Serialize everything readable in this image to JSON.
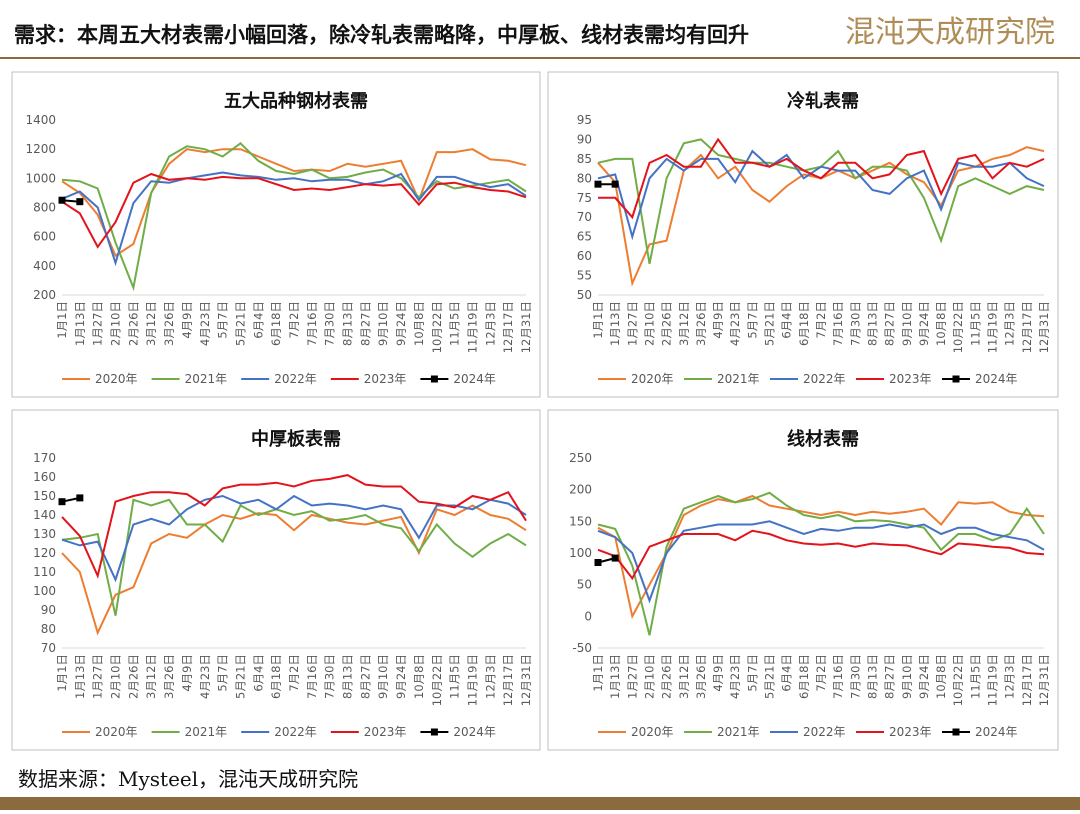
{
  "header": {
    "title": "需求：本周五大材表需小幅回落，除冷轧表需略降，中厚板、线材表需均有回升",
    "logo": "混沌天成研究院"
  },
  "footer": {
    "source": "数据来源：Mysteel，混沌天成研究院"
  },
  "chart_data": [
    {
      "type": "line",
      "title": "五大品种钢材表需",
      "categories": [
        "1月1日",
        "1月13日",
        "1月27日",
        "2月10日",
        "2月26日",
        "3月12日",
        "3月26日",
        "4月9日",
        "4月23日",
        "5月7日",
        "5月21日",
        "6月4日",
        "6月18日",
        "7月2日",
        "7月16日",
        "7月30日",
        "8月13日",
        "8月27日",
        "9月10日",
        "9月24日",
        "10月8日",
        "10月22日",
        "11月5日",
        "11月19日",
        "12月3日",
        "12月17日",
        "12月31日"
      ],
      "ylim": [
        200,
        1400
      ],
      "yticks": [
        200,
        400,
        600,
        800,
        1000,
        1200,
        1400
      ],
      "series": [
        {
          "name": "2020年",
          "color": "#ED7D31",
          "values": [
            980,
            900,
            750,
            470,
            550,
            900,
            1100,
            1200,
            1180,
            1200,
            1200,
            1150,
            1100,
            1050,
            1060,
            1050,
            1100,
            1080,
            1100,
            1120,
            850,
            1180,
            1180,
            1200,
            1130,
            1120,
            1090
          ]
        },
        {
          "name": "2021年",
          "color": "#70AD47",
          "values": [
            990,
            980,
            930,
            560,
            250,
            900,
            1150,
            1220,
            1200,
            1150,
            1240,
            1120,
            1050,
            1030,
            1060,
            1000,
            1010,
            1040,
            1060,
            1000,
            870,
            980,
            930,
            950,
            970,
            990,
            910
          ]
        },
        {
          "name": "2022年",
          "color": "#4472C4",
          "values": [
            860,
            910,
            800,
            420,
            830,
            980,
            970,
            1000,
            1020,
            1040,
            1020,
            1010,
            990,
            1000,
            980,
            990,
            990,
            960,
            980,
            1030,
            850,
            1010,
            1010,
            970,
            940,
            960,
            880
          ]
        },
        {
          "name": "2023年",
          "color": "#E3131B",
          "values": [
            840,
            760,
            530,
            700,
            970,
            1030,
            990,
            1000,
            990,
            1010,
            1000,
            1000,
            960,
            920,
            930,
            920,
            940,
            960,
            950,
            960,
            820,
            960,
            970,
            940,
            920,
            910,
            870
          ]
        },
        {
          "name": "2024年",
          "color": "#000000",
          "marker": "square",
          "values": [
            850,
            840,
            null,
            null,
            null,
            null,
            null,
            null,
            null,
            null,
            null,
            null,
            null,
            null,
            null,
            null,
            null,
            null,
            null,
            null,
            null,
            null,
            null,
            null,
            null,
            null,
            null
          ]
        }
      ]
    },
    {
      "type": "line",
      "title": "冷轧表需",
      "categories": [
        "1月1日",
        "1月13日",
        "1月27日",
        "2月10日",
        "2月26日",
        "3月12日",
        "3月26日",
        "4月9日",
        "4月23日",
        "5月7日",
        "5月21日",
        "6月4日",
        "6月18日",
        "7月2日",
        "7月16日",
        "7月30日",
        "8月13日",
        "8月27日",
        "9月10日",
        "9月24日",
        "10月8日",
        "10月22日",
        "11月5日",
        "11月19日",
        "12月3日",
        "12月17日",
        "12月31日"
      ],
      "ylim": [
        50,
        95
      ],
      "yticks": [
        50,
        55,
        60,
        65,
        70,
        75,
        80,
        85,
        90,
        95
      ],
      "series": [
        {
          "name": "2020年",
          "color": "#ED7D31",
          "values": [
            84,
            79,
            53,
            63,
            64,
            82,
            86,
            80,
            83,
            77,
            74,
            78,
            81,
            80,
            82,
            80,
            82,
            84,
            81,
            79,
            73,
            82,
            83,
            85,
            86,
            88,
            87
          ]
        },
        {
          "name": "2021年",
          "color": "#70AD47",
          "values": [
            84,
            85,
            85,
            58,
            80,
            89,
            90,
            86,
            85,
            84,
            84,
            83,
            82,
            83,
            87,
            80,
            83,
            83,
            82,
            75,
            64,
            78,
            80,
            78,
            76,
            78,
            77
          ]
        },
        {
          "name": "2022年",
          "color": "#4472C4",
          "values": [
            80,
            81,
            65,
            80,
            85,
            82,
            85,
            85,
            79,
            87,
            83,
            86,
            80,
            83,
            82,
            82,
            77,
            76,
            80,
            82,
            72,
            84,
            83,
            83,
            84,
            80,
            78
          ]
        },
        {
          "name": "2023年",
          "color": "#E3131B",
          "values": [
            75,
            75,
            70,
            84,
            86,
            83,
            83,
            90,
            84,
            84,
            83,
            85,
            82,
            80,
            84,
            84,
            80,
            81,
            86,
            87,
            76,
            85,
            86,
            80,
            84,
            83,
            85
          ]
        },
        {
          "name": "2024年",
          "color": "#000000",
          "marker": "square",
          "values": [
            78.5,
            78.5,
            null,
            null,
            null,
            null,
            null,
            null,
            null,
            null,
            null,
            null,
            null,
            null,
            null,
            null,
            null,
            null,
            null,
            null,
            null,
            null,
            null,
            null,
            null,
            null,
            null
          ]
        }
      ]
    },
    {
      "type": "line",
      "title": "中厚板表需",
      "categories": [
        "1月1日",
        "1月13日",
        "1月27日",
        "2月10日",
        "2月26日",
        "3月12日",
        "3月26日",
        "4月9日",
        "4月23日",
        "5月7日",
        "5月21日",
        "6月4日",
        "6月18日",
        "7月2日",
        "7月16日",
        "7月30日",
        "8月13日",
        "8月27日",
        "9月10日",
        "9月24日",
        "10月8日",
        "10月22日",
        "11月5日",
        "11月19日",
        "12月3日",
        "12月17日",
        "12月31日"
      ],
      "ylim": [
        70,
        170
      ],
      "yticks": [
        70,
        80,
        90,
        100,
        110,
        120,
        130,
        140,
        150,
        160,
        170
      ],
      "series": [
        {
          "name": "2020年",
          "color": "#ED7D31",
          "values": [
            120,
            110,
            78,
            98,
            102,
            125,
            130,
            128,
            135,
            140,
            138,
            141,
            140,
            132,
            140,
            138,
            136,
            135,
            137,
            139,
            120,
            143,
            140,
            145,
            140,
            138,
            132
          ]
        },
        {
          "name": "2021年",
          "color": "#70AD47",
          "values": [
            127,
            128,
            130,
            87,
            148,
            145,
            148,
            135,
            135,
            126,
            145,
            140,
            143,
            140,
            142,
            137,
            138,
            140,
            135,
            133,
            121,
            135,
            125,
            118,
            125,
            130,
            124
          ]
        },
        {
          "name": "2022年",
          "color": "#4472C4",
          "values": [
            127,
            124,
            126,
            106,
            135,
            138,
            135,
            143,
            148,
            150,
            146,
            148,
            143,
            150,
            145,
            146,
            145,
            143,
            145,
            143,
            128,
            145,
            145,
            143,
            148,
            146,
            140
          ]
        },
        {
          "name": "2023年",
          "color": "#E3131B",
          "values": [
            139,
            129,
            108,
            147,
            150,
            152,
            152,
            151,
            145,
            154,
            156,
            156,
            157,
            155,
            158,
            159,
            161,
            156,
            155,
            155,
            147,
            146,
            144,
            150,
            148,
            152,
            137
          ]
        },
        {
          "name": "2024年",
          "color": "#000000",
          "marker": "square",
          "values": [
            147,
            149,
            null,
            null,
            null,
            null,
            null,
            null,
            null,
            null,
            null,
            null,
            null,
            null,
            null,
            null,
            null,
            null,
            null,
            null,
            null,
            null,
            null,
            null,
            null,
            null,
            null
          ]
        }
      ]
    },
    {
      "type": "line",
      "title": "线材表需",
      "categories": [
        "1月1日",
        "1月13日",
        "1月27日",
        "2月10日",
        "2月26日",
        "3月12日",
        "3月26日",
        "4月9日",
        "4月23日",
        "5月7日",
        "5月21日",
        "6月4日",
        "6月18日",
        "7月2日",
        "7月16日",
        "7月30日",
        "8月13日",
        "8月27日",
        "9月10日",
        "9月24日",
        "10月8日",
        "10月22日",
        "11月5日",
        "11月19日",
        "12月3日",
        "12月17日",
        "12月31日"
      ],
      "ylim": [
        -50,
        250
      ],
      "yticks": [
        -50,
        0,
        50,
        100,
        150,
        200,
        250
      ],
      "series": [
        {
          "name": "2020年",
          "color": "#ED7D31",
          "values": [
            140,
            125,
            0,
            50,
            100,
            160,
            175,
            185,
            180,
            190,
            175,
            170,
            165,
            160,
            165,
            160,
            165,
            162,
            165,
            170,
            145,
            180,
            178,
            180,
            165,
            160,
            158
          ]
        },
        {
          "name": "2021年",
          "color": "#70AD47",
          "values": [
            145,
            138,
            80,
            -30,
            110,
            170,
            180,
            190,
            180,
            185,
            195,
            175,
            160,
            155,
            160,
            150,
            152,
            150,
            145,
            140,
            105,
            130,
            130,
            120,
            130,
            170,
            130
          ]
        },
        {
          "name": "2022年",
          "color": "#4472C4",
          "values": [
            135,
            125,
            100,
            25,
            100,
            135,
            140,
            145,
            145,
            145,
            150,
            140,
            130,
            138,
            135,
            140,
            140,
            145,
            140,
            145,
            130,
            140,
            140,
            130,
            125,
            120,
            105
          ]
        },
        {
          "name": "2023年",
          "color": "#E3131B",
          "values": [
            105,
            95,
            60,
            110,
            120,
            130,
            130,
            130,
            120,
            135,
            130,
            120,
            115,
            113,
            115,
            110,
            115,
            113,
            112,
            105,
            98,
            115,
            113,
            110,
            108,
            100,
            98
          ]
        },
        {
          "name": "2024年",
          "color": "#000000",
          "marker": "square",
          "values": [
            85,
            92,
            null,
            null,
            null,
            null,
            null,
            null,
            null,
            null,
            null,
            null,
            null,
            null,
            null,
            null,
            null,
            null,
            null,
            null,
            null,
            null,
            null,
            null,
            null,
            null,
            null
          ]
        }
      ]
    }
  ]
}
